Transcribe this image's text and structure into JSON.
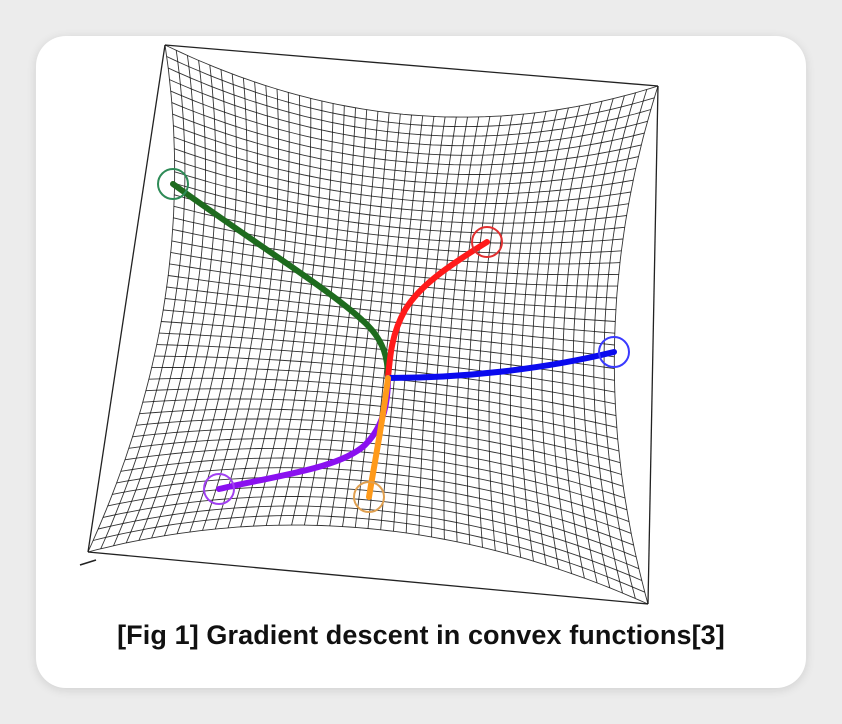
{
  "figure": {
    "caption": "[Fig 1] Gradient descent in convex functions[3]",
    "paths": [
      {
        "name": "green-path",
        "color": "#1e6b1e",
        "marker_color": "#2e8b57"
      },
      {
        "name": "red-path",
        "color": "#ff1a1a",
        "marker_color": "#e03030"
      },
      {
        "name": "blue-path",
        "color": "#0a0aee",
        "marker_color": "#3a3aff"
      },
      {
        "name": "purple-path",
        "color": "#8a10f0",
        "marker_color": "#a040f0"
      },
      {
        "name": "orange-path",
        "color": "#ff9a1a",
        "marker_color": "#e0a050"
      }
    ],
    "mesh_color": "#111111"
  }
}
